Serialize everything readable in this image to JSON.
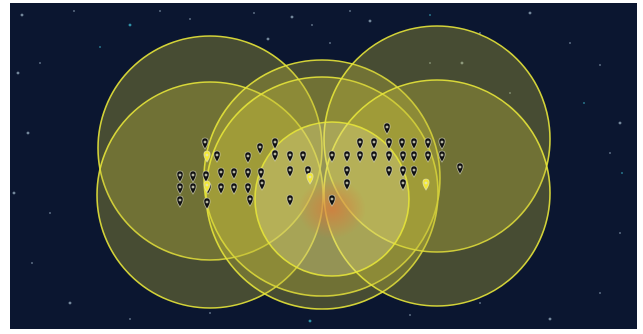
{
  "map": {
    "background_color": "#0b1630",
    "frame_color": "#ffffff",
    "star_color": "#9fb6c8",
    "star_accent_color": "#3fc4d8",
    "coverage_fill_color": "#c8c23a",
    "coverage_stroke_color": "#e6e43a",
    "center_coverage_fill_color": "#e8e0a0",
    "hotspot_color": "#d9773a",
    "marker_color": "#111111",
    "marker_outline_color": "#e0e0c8",
    "highlight_marker_color": "#f2e833",
    "marker_icon": "map-pin-icon"
  }
}
